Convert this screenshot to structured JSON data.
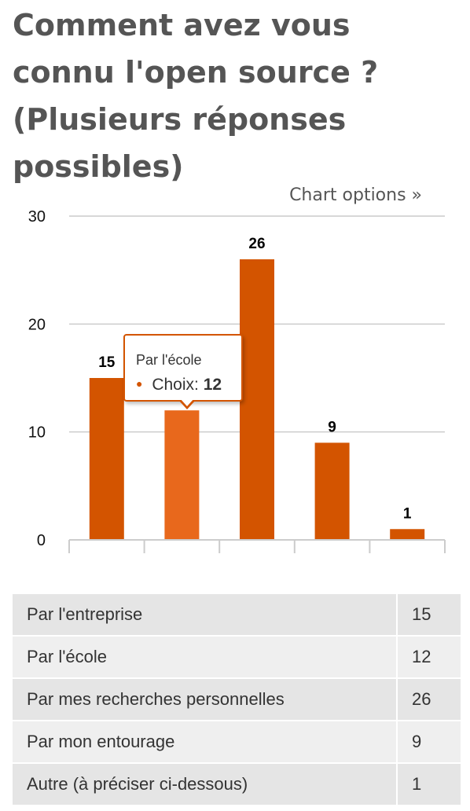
{
  "page": {
    "title": "Comment avez vous connu l'open source ? (Plusieurs réponses possibles)",
    "chart_options_label": "Chart options »"
  },
  "colors": {
    "bar": "#d35400",
    "bar_hover": "#e8681c",
    "grid": "#cccccc",
    "title": "#555555"
  },
  "tooltip": {
    "title": "Par l'école",
    "series_label": "Choix:",
    "value": "12",
    "dot": "●"
  },
  "chart_data": {
    "type": "bar",
    "categories": [
      "Par l'entreprise",
      "Par l'école",
      "Par mes recherches personnelles",
      "Par mon entourage",
      "Autre (à préciser ci-dessous)"
    ],
    "series": [
      {
        "name": "Choix",
        "values": [
          15,
          12,
          26,
          9,
          1
        ]
      }
    ],
    "ylim": [
      0,
      30
    ],
    "yticks": [
      0,
      10,
      20,
      30
    ],
    "grid": true,
    "data_labels": true,
    "highlighted_index": 1
  },
  "table": {
    "rows": [
      {
        "label": "Par l'entreprise",
        "value": "15"
      },
      {
        "label": "Par l'école",
        "value": "12"
      },
      {
        "label": "Par mes recherches personnelles",
        "value": "26"
      },
      {
        "label": "Par mon entourage",
        "value": "9"
      },
      {
        "label": "Autre (à préciser ci-dessous)",
        "value": "1"
      }
    ]
  }
}
